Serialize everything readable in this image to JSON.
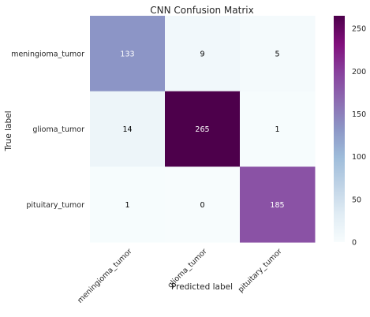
{
  "chart_data": {
    "type": "heatmap",
    "title": "CNN Confusion Matrix",
    "xlabel": "Predicted label",
    "ylabel": "True label",
    "x_categories": [
      "meningioma_tumor",
      "glioma_tumor",
      "pituitary_tumor"
    ],
    "y_categories": [
      "meningioma_tumor",
      "glioma_tumor",
      "pituitary_tumor"
    ],
    "matrix": [
      [
        133,
        9,
        5
      ],
      [
        14,
        265,
        1
      ],
      [
        1,
        0,
        185
      ]
    ],
    "colormap": "BuPu",
    "colorbar": {
      "range": [
        0,
        265
      ],
      "ticks": [
        0,
        50,
        100,
        150,
        200,
        250
      ]
    },
    "grid": false
  }
}
